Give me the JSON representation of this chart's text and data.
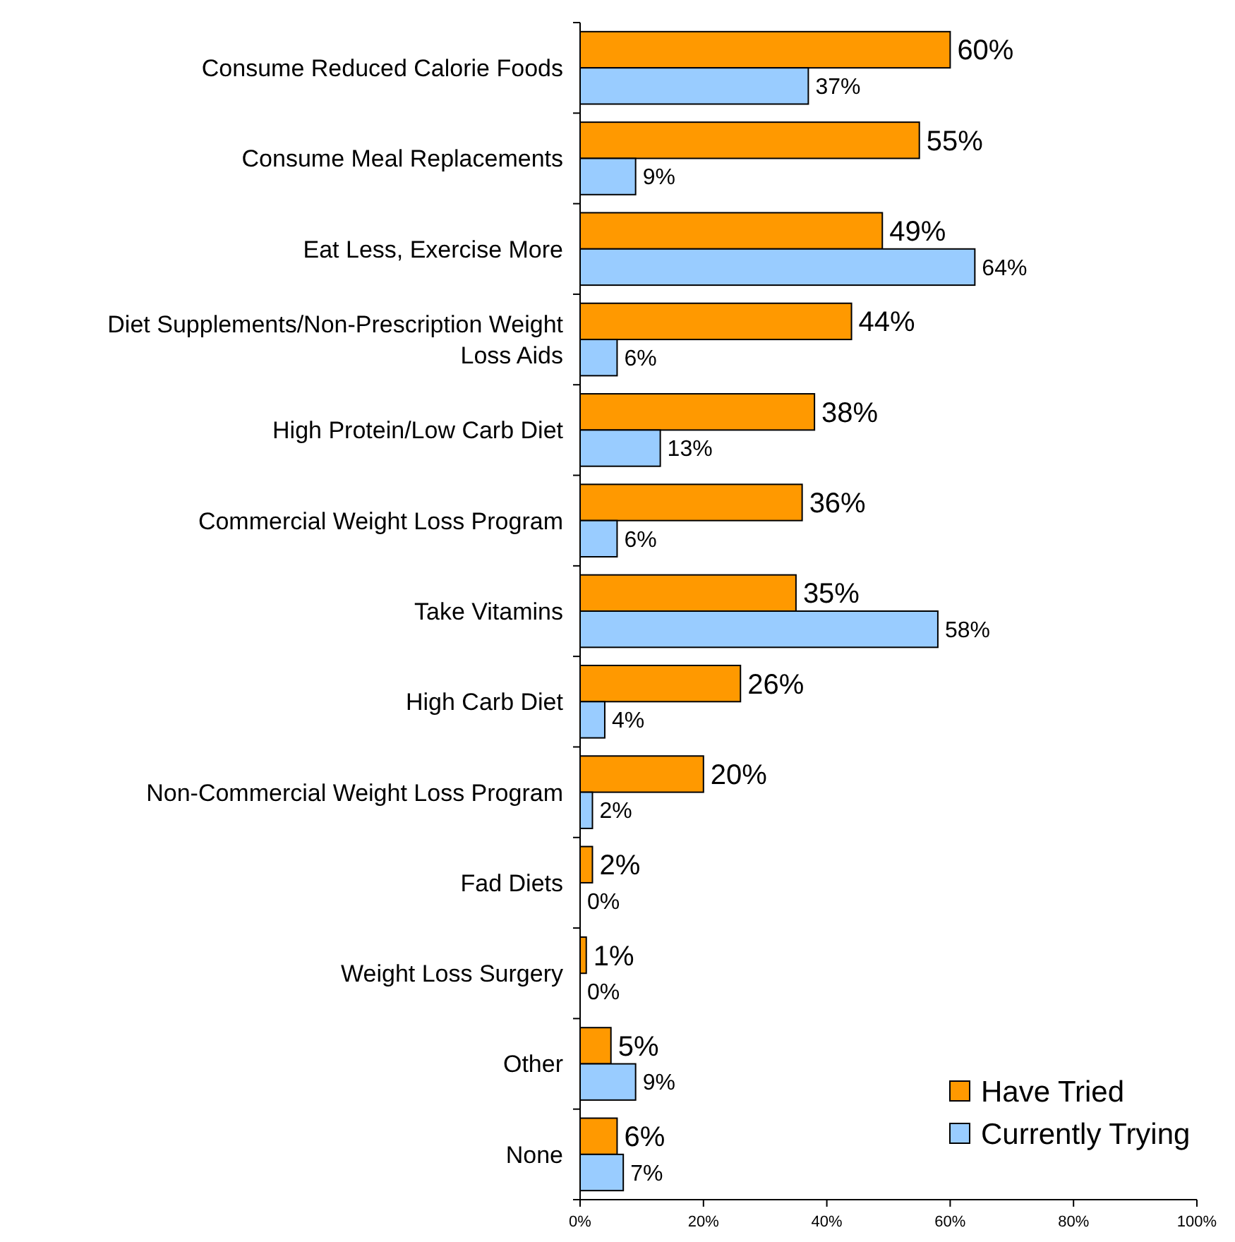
{
  "chart_data": {
    "type": "bar",
    "orientation": "horizontal",
    "categories": [
      "Consume Reduced Calorie Foods",
      "Consume Meal Replacements",
      "Eat Less, Exercise More",
      "Diet Supplements/Non-Prescription Weight Loss Aids",
      "High Protein/Low Carb Diet",
      "Commercial Weight Loss Program",
      "Take Vitamins",
      "High Carb Diet",
      "Non-Commercial Weight Loss Program",
      "Fad Diets",
      "Weight Loss Surgery",
      "Other",
      "None"
    ],
    "series": [
      {
        "name": "Have Tried",
        "color": "#ff9900",
        "values": [
          60,
          55,
          49,
          44,
          38,
          36,
          35,
          26,
          20,
          2,
          1,
          5,
          6
        ],
        "value_labels": [
          "60%",
          "55%",
          "49%",
          "44%",
          "38%",
          "36%",
          "35%",
          "26%",
          "20%",
          "2%",
          "1%",
          "5%",
          "6%"
        ]
      },
      {
        "name": "Currently Trying",
        "color": "#99ccff",
        "values": [
          37,
          9,
          64,
          6,
          13,
          6,
          58,
          4,
          2,
          0,
          0,
          9,
          7
        ],
        "value_labels": [
          "37%",
          "9%",
          "64%",
          "6%",
          "13%",
          "6%",
          "58%",
          "4%",
          "2%",
          "0%",
          "0%",
          "9%",
          "7%"
        ]
      }
    ],
    "xlim": [
      0,
      100
    ],
    "xticks": [
      {
        "value": 0,
        "label": "0%"
      },
      {
        "value": 20,
        "label": "20%"
      },
      {
        "value": 40,
        "label": "40%"
      },
      {
        "value": 60,
        "label": "60%"
      },
      {
        "value": 80,
        "label": "80%"
      },
      {
        "value": 100,
        "label": "100%"
      }
    ],
    "legend": "bottom right",
    "grid": false
  }
}
